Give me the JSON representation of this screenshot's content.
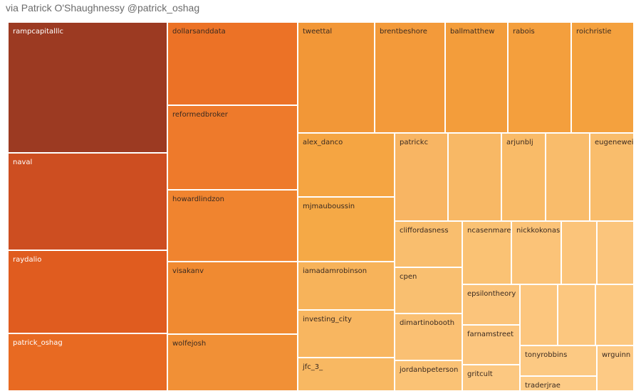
{
  "caption": "via Patrick O'Shaughnessy @patrick_oshag",
  "chart_data": {
    "type": "treemap",
    "title": "",
    "color_scale": [
      "#fdc286",
      "#9a3a21"
    ],
    "items": [
      {
        "label": "rampcapitalllc",
        "color": "#9c3a22",
        "text_color": "#ffffff"
      },
      {
        "label": "naval",
        "color": "#cd4e21",
        "text_color": "#ffffff"
      },
      {
        "label": "raydalio",
        "color": "#e05c1f",
        "text_color": "#ffffff"
      },
      {
        "label": "patrick_oshag",
        "color": "#e86a22",
        "text_color": "#ffffff"
      },
      {
        "label": "dollarsanddata",
        "color": "#ec7226",
        "text_color": "#3a2a20"
      },
      {
        "label": "reformedbroker",
        "color": "#ee7a2b",
        "text_color": "#3a2a20"
      },
      {
        "label": "howardlindzon",
        "color": "#f0842f",
        "text_color": "#3a2a20"
      },
      {
        "label": "visakanv",
        "color": "#f08a31",
        "text_color": "#3a2a20"
      },
      {
        "label": "wolfejosh",
        "color": "#f19036",
        "text_color": "#3a2a20"
      },
      {
        "label": "tweettal",
        "color": "#f29737",
        "text_color": "#3a2a20"
      },
      {
        "label": "brentbeshore",
        "color": "#f39a3a",
        "text_color": "#3a2a20"
      },
      {
        "label": "ballmatthew",
        "color": "#f39d3b",
        "text_color": "#3a2a20"
      },
      {
        "label": "rabois",
        "color": "#f49f3d",
        "text_color": "#3a2a20"
      },
      {
        "label": "roichristie",
        "color": "#f4a13e",
        "text_color": "#3a2a20"
      },
      {
        "label": "alex_danco",
        "color": "#f5a542",
        "text_color": "#3a2a20"
      },
      {
        "label": "mjmauboussin",
        "color": "#f5a946",
        "text_color": "#3a2a20"
      },
      {
        "label": "iamadamrobinson",
        "color": "#f7b35a",
        "text_color": "#3a2a20"
      },
      {
        "label": "investing_city",
        "color": "#f8b660",
        "text_color": "#3a2a20"
      },
      {
        "label": "jfc_3_",
        "color": "#f8b862",
        "text_color": "#3a2a20"
      },
      {
        "label": "patrickc",
        "color": "#f8b563",
        "text_color": "#3a2a20"
      },
      {
        "label": "",
        "color": "#f8b865",
        "text_color": "#3a2a20"
      },
      {
        "label": "arjunblj",
        "color": "#f9bb68",
        "text_color": "#3a2a20"
      },
      {
        "label": "",
        "color": "#f9bc6b",
        "text_color": "#3a2a20"
      },
      {
        "label": "eugenewei",
        "color": "#f9bd6c",
        "text_color": "#3a2a20"
      },
      {
        "label": "cliffordasness",
        "color": "#f9be6e",
        "text_color": "#3a2a20"
      },
      {
        "label": "cpen",
        "color": "#f9bf70",
        "text_color": "#3a2a20"
      },
      {
        "label": "dimartinobooth",
        "color": "#fac073",
        "text_color": "#3a2a20"
      },
      {
        "label": "jordanbpeterson",
        "color": "#fac275",
        "text_color": "#3a2a20"
      },
      {
        "label": "ncasenmare",
        "color": "#fac274",
        "text_color": "#3a2a20"
      },
      {
        "label": "nickkokonas",
        "color": "#fbc378",
        "text_color": "#3a2a20"
      },
      {
        "label": "",
        "color": "#fbc47a",
        "text_color": "#3a2a20"
      },
      {
        "label": "",
        "color": "#fbc57c",
        "text_color": "#3a2a20"
      },
      {
        "label": "epsilontheory",
        "color": "#fbc47b",
        "text_color": "#3a2a20"
      },
      {
        "label": "",
        "color": "#fcc67e",
        "text_color": "#3a2a20"
      },
      {
        "label": "",
        "color": "#fcc77f",
        "text_color": "#3a2a20"
      },
      {
        "label": "",
        "color": "#fcc880",
        "text_color": "#3a2a20"
      },
      {
        "label": "farnamstreet",
        "color": "#fcc67f",
        "text_color": "#3a2a20"
      },
      {
        "label": "gritcult",
        "color": "#fcc881",
        "text_color": "#3a2a20"
      },
      {
        "label": "tonyrobbins",
        "color": "#fcc983",
        "text_color": "#3a2a20"
      },
      {
        "label": "wrguinn",
        "color": "#fdca85",
        "text_color": "#3a2a20"
      },
      {
        "label": "traderjrae",
        "color": "#fdcb86",
        "text_color": "#3a2a20"
      }
    ]
  }
}
